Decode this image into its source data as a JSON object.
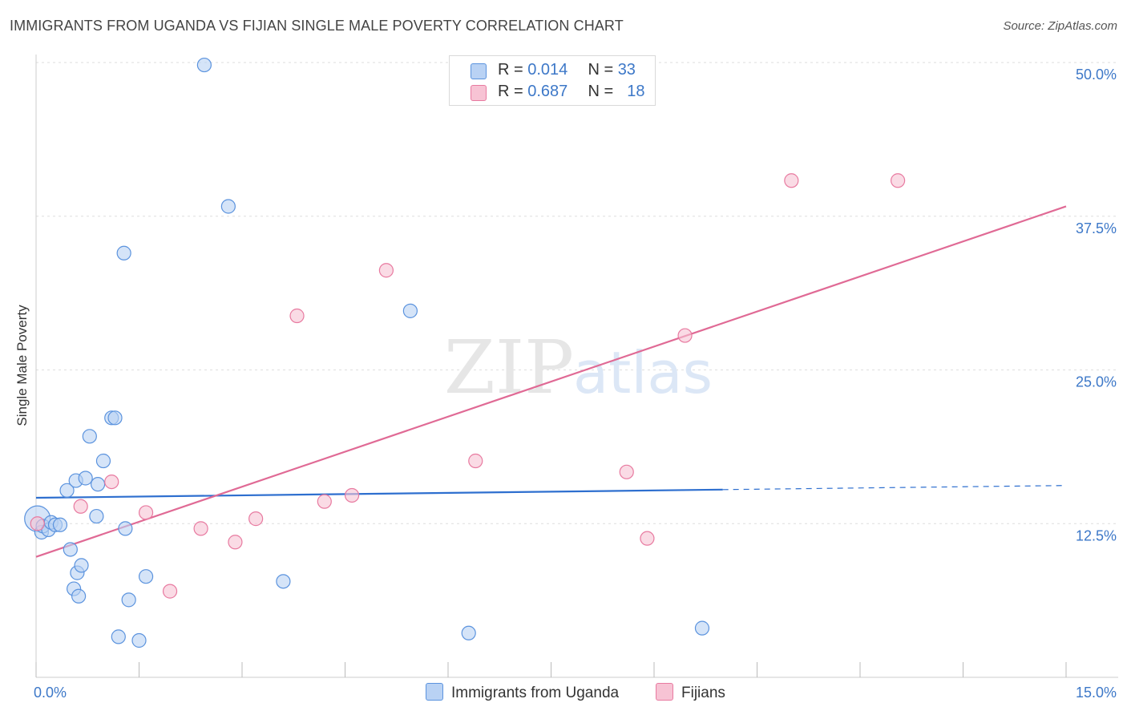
{
  "title": "IMMIGRANTS FROM UGANDA VS FIJIAN SINGLE MALE POVERTY CORRELATION CHART",
  "source": "Source: ZipAtlas.com",
  "watermark": {
    "zip": "ZIP",
    "atlas": "atlas"
  },
  "legend": {
    "uganda": {
      "r_label": "R =",
      "r_value": "0.014",
      "n_label": "N =",
      "n_value": "33"
    },
    "fijian": {
      "r_label": "R =",
      "r_value": "0.687",
      "n_label": "N =",
      "n_value": "18"
    }
  },
  "chart_data": {
    "type": "scatter",
    "xlabel": "",
    "ylabel": "Single Male Poverty",
    "xlim": [
      0,
      15
    ],
    "ylim": [
      0,
      50
    ],
    "x_tick_labels": [
      "0.0%",
      "15.0%"
    ],
    "y_ticks": [
      12.5,
      25.0,
      37.5,
      50.0
    ],
    "y_tick_labels": [
      "12.5%",
      "25.0%",
      "37.5%",
      "50.0%"
    ],
    "grid": true,
    "legend_position": "top-center",
    "colors": {
      "uganda": "#5b93de",
      "uganda_fill": "#b9d2f4",
      "fijian": "#e87aa0",
      "fijian_fill": "#f7c3d4"
    },
    "series": [
      {
        "name": "Immigrants from Uganda",
        "key": "uganda",
        "points": [
          [
            0.02,
            12.9
          ],
          [
            0.08,
            11.8
          ],
          [
            0.1,
            12.3
          ],
          [
            0.18,
            12.0
          ],
          [
            0.22,
            12.6
          ],
          [
            0.28,
            12.4
          ],
          [
            0.35,
            12.4
          ],
          [
            0.45,
            15.2
          ],
          [
            0.5,
            10.4
          ],
          [
            0.55,
            7.2
          ],
          [
            0.58,
            16.0
          ],
          [
            0.6,
            8.5
          ],
          [
            0.62,
            6.6
          ],
          [
            0.66,
            9.1
          ],
          [
            0.72,
            16.2
          ],
          [
            0.78,
            19.6
          ],
          [
            0.88,
            13.1
          ],
          [
            0.9,
            15.7
          ],
          [
            0.98,
            17.6
          ],
          [
            1.1,
            21.1
          ],
          [
            1.15,
            21.1
          ],
          [
            1.2,
            3.3
          ],
          [
            1.3,
            12.1
          ],
          [
            1.28,
            34.5
          ],
          [
            1.35,
            6.3
          ],
          [
            1.5,
            3.0
          ],
          [
            1.6,
            8.2
          ],
          [
            2.45,
            49.8
          ],
          [
            2.8,
            38.3
          ],
          [
            3.6,
            7.8
          ],
          [
            5.45,
            29.8
          ],
          [
            6.3,
            3.6
          ],
          [
            9.7,
            4.0
          ]
        ]
      },
      {
        "name": "Fijians",
        "key": "fijian",
        "points": [
          [
            0.02,
            12.5
          ],
          [
            0.65,
            13.9
          ],
          [
            1.1,
            15.9
          ],
          [
            1.6,
            13.4
          ],
          [
            1.95,
            7.0
          ],
          [
            2.4,
            12.1
          ],
          [
            2.9,
            11.0
          ],
          [
            3.2,
            12.9
          ],
          [
            3.8,
            29.4
          ],
          [
            4.2,
            14.3
          ],
          [
            4.6,
            14.8
          ],
          [
            5.1,
            33.1
          ],
          [
            6.4,
            17.6
          ],
          [
            8.6,
            16.7
          ],
          [
            8.9,
            11.3
          ],
          [
            9.45,
            27.8
          ],
          [
            11.0,
            40.4
          ],
          [
            12.55,
            40.4
          ]
        ]
      }
    ],
    "trendlines": [
      {
        "key": "uganda",
        "start": [
          0,
          14.6
        ],
        "end": [
          15,
          15.6
        ],
        "solid_until_x": 10.0
      },
      {
        "key": "fijian",
        "start": [
          0,
          9.8
        ],
        "end": [
          15,
          38.3
        ]
      }
    ]
  },
  "bottom_legend": {
    "uganda_label": "Immigrants from Uganda",
    "fijian_label": "Fijians"
  }
}
